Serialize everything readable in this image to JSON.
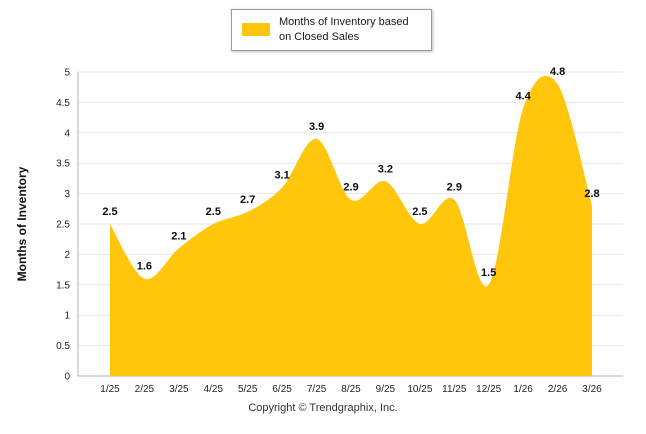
{
  "legend": {
    "label": "Months of Inventory based on Closed Sales"
  },
  "y_axis_title": "Months of Inventory",
  "copyright": "Copyright © Trendgraphix, Inc.",
  "chart_data": {
    "type": "area",
    "title": "",
    "xlabel": "",
    "ylabel": "Months of Inventory",
    "categories": [
      "1/25",
      "2/25",
      "3/25",
      "4/25",
      "5/25",
      "6/25",
      "7/25",
      "8/25",
      "9/25",
      "10/25",
      "11/25",
      "12/25",
      "1/26",
      "2/26",
      "3/26"
    ],
    "values": [
      2.5,
      1.6,
      2.1,
      2.5,
      2.7,
      3.1,
      3.9,
      2.9,
      3.2,
      2.5,
      2.9,
      1.5,
      4.4,
      4.8,
      2.8
    ],
    "ylim": [
      0,
      5
    ],
    "ytick_step": 0.5,
    "fill_color": "#FFC60B",
    "grid": true,
    "legend_position": "top",
    "legend_entries": [
      "Months of Inventory based on Closed Sales"
    ]
  }
}
